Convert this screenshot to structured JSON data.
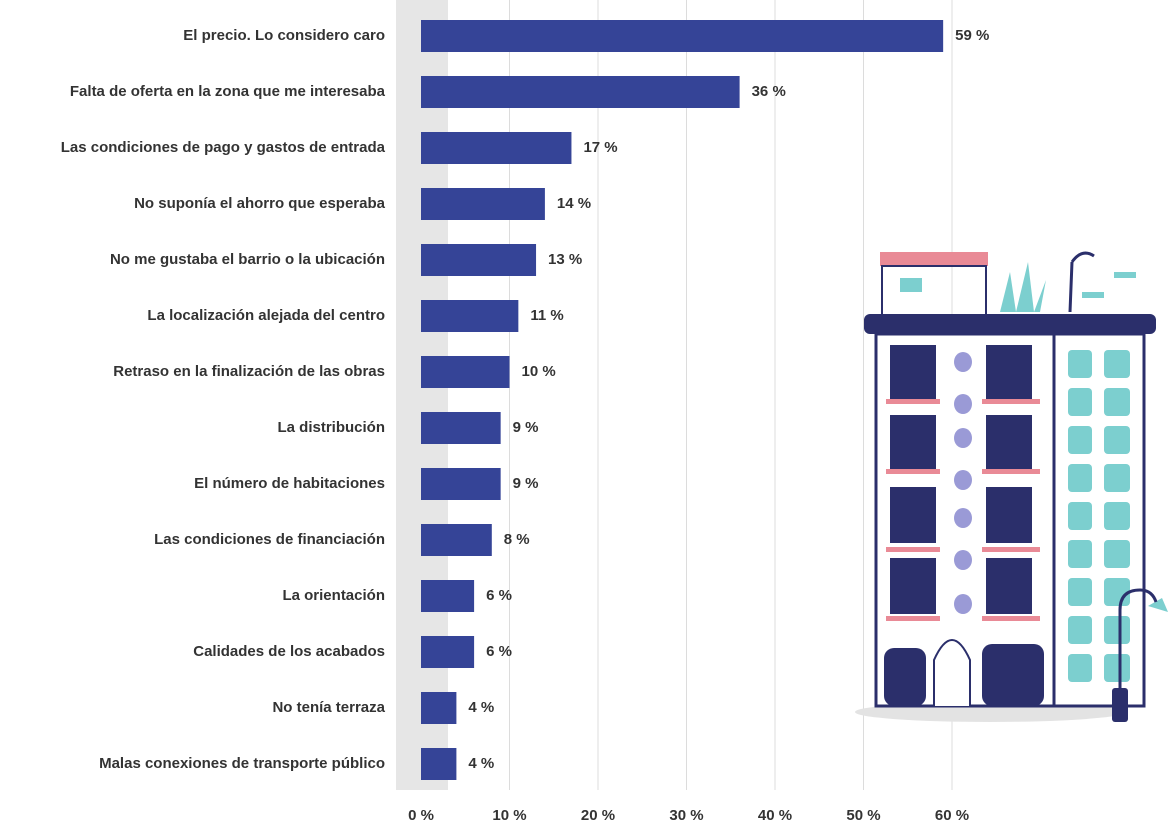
{
  "chart_data": {
    "type": "bar",
    "orientation": "horizontal",
    "categories": [
      "El precio. Lo considero caro",
      "Falta de oferta en la zona que me interesaba",
      "Las condiciones de pago y gastos de entrada",
      "No suponía el ahorro que esperaba",
      "No me gustaba el barrio o la ubicación",
      "La localización alejada del centro",
      "Retraso en la finalización de las obras",
      "La distribución",
      "El número de habitaciones",
      "Las condiciones de financiación",
      "La orientación",
      "Calidades de los acabados",
      "No tenía terraza",
      "Malas conexiones de transporte público"
    ],
    "values": [
      59,
      36,
      17,
      14,
      13,
      11,
      10,
      9,
      9,
      8,
      6,
      6,
      4,
      4
    ],
    "value_labels": [
      "59 %",
      "36 %",
      "17 %",
      "14 %",
      "13 %",
      "11 %",
      "10 %",
      "9 %",
      "9 %",
      "8 %",
      "6 %",
      "6 %",
      "4 %",
      "4 %"
    ],
    "color": "#354497",
    "xlim": [
      0,
      60
    ],
    "xticks": [
      {
        "value": 0,
        "label": "0 %"
      },
      {
        "value": 10,
        "label": "10 %"
      },
      {
        "value": 20,
        "label": "20 %"
      },
      {
        "value": 30,
        "label": "30 %"
      },
      {
        "value": 40,
        "label": "40 %"
      },
      {
        "value": 50,
        "label": "50 %"
      },
      {
        "value": 60,
        "label": "60 %"
      }
    ],
    "grid": true
  }
}
